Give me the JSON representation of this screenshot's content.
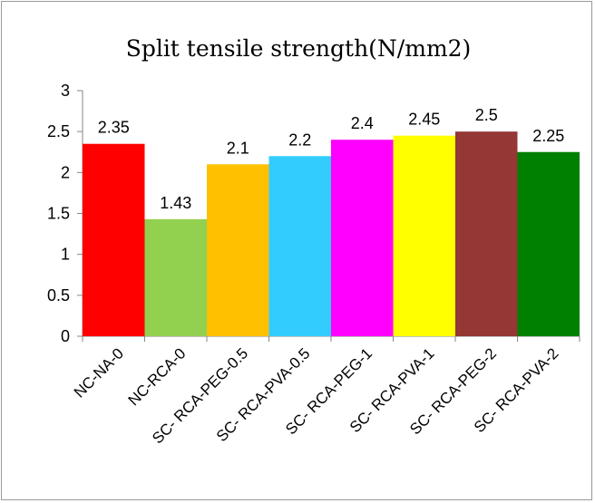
{
  "chart_data": {
    "type": "bar",
    "title": "Split tensile strength(N/mm2)",
    "xlabel": "",
    "ylabel": "",
    "ylim": [
      0,
      3
    ],
    "yticks": [
      "0",
      "0.5",
      "1",
      "1.5",
      "2",
      "2.5",
      "3"
    ],
    "grid": false,
    "legend": "none",
    "categories": [
      "NC-NA-0",
      "NC-RCA-0",
      "SC- RCA-PEG-0.5",
      "SC- RCA-PVA-0.5",
      "SC- RCA-PEG-1",
      "SC- RCA-PVA-1",
      "SC- RCA-PEG-2",
      "SC- RCA-PVA-2"
    ],
    "values": [
      2.35,
      1.43,
      2.1,
      2.2,
      2.4,
      2.45,
      2.5,
      2.25
    ],
    "data_labels": [
      "2.35",
      "1.43",
      "2.1",
      "2.2",
      "2.4",
      "2.45",
      "2.5",
      "2.25"
    ],
    "colors": [
      "#ff0000",
      "#92d050",
      "#ffc000",
      "#33ccff",
      "#ff00ff",
      "#ffff00",
      "#953735",
      "#008000"
    ]
  }
}
